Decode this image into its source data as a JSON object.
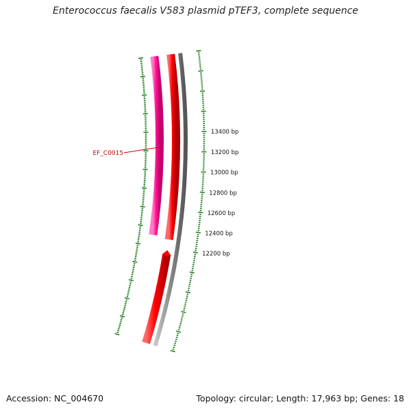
{
  "title": "Enterococcus faecalis V583 plasmid pTEF3, complete sequence",
  "accession": "Accession: NC_004670",
  "summary": "Topology: circular; Length: 17,963 bp; Genes: 18",
  "colors": {
    "tick": "#1e7d1e",
    "reverse_gene": "#ff1493",
    "forward_gene": "#ff0000",
    "backbone": "#8a8a8a",
    "gene_label": "#cc0000"
  },
  "ruler": {
    "labels": [
      {
        "bp": 13400,
        "text": "13400 bp"
      },
      {
        "bp": 13200,
        "text": "13200 bp"
      },
      {
        "bp": 13000,
        "text": "13000 bp"
      },
      {
        "bp": 12800,
        "text": "12800 bp"
      },
      {
        "bp": 12600,
        "text": "12600 bp"
      },
      {
        "bp": 12400,
        "text": "12400 bp"
      },
      {
        "bp": 12200,
        "text": "12200 bp"
      }
    ]
  },
  "gene_labels": [
    {
      "text": "EF_C0015"
    }
  ]
}
